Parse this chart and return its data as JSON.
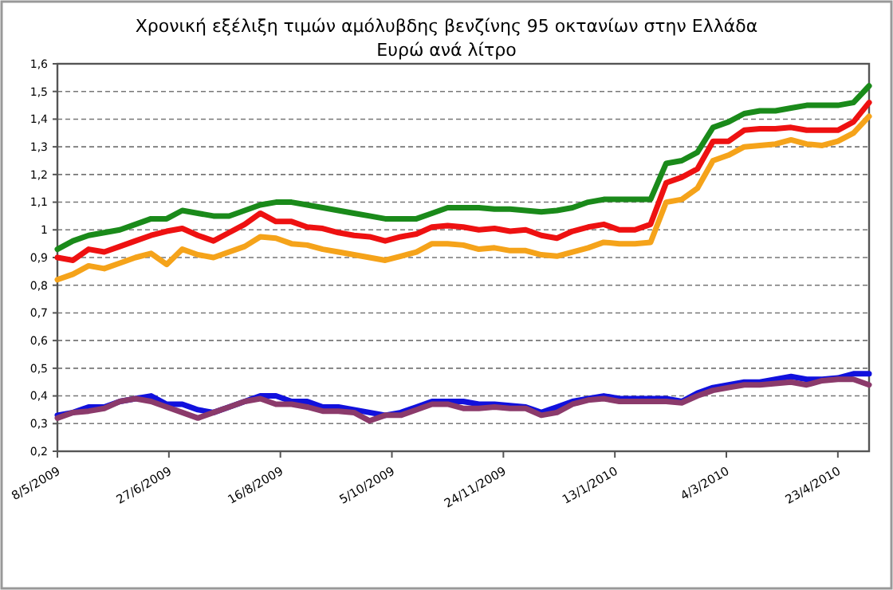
{
  "chart_data": {
    "type": "line",
    "title": "Χρονική εξέλιξη τιμών αμόλυβδης βενζίνης 95 οκτανίων στην Ελλάδα",
    "subtitle": "Ευρώ ανά λίτρο",
    "x": [
      "2009-05-08",
      "2009-05-15",
      "2009-05-22",
      "2009-05-29",
      "2009-06-05",
      "2009-06-12",
      "2009-06-19",
      "2009-06-26",
      "2009-07-03",
      "2009-07-10",
      "2009-07-17",
      "2009-07-24",
      "2009-07-31",
      "2009-08-07",
      "2009-08-14",
      "2009-08-21",
      "2009-08-28",
      "2009-09-04",
      "2009-09-11",
      "2009-09-18",
      "2009-09-25",
      "2009-10-02",
      "2009-10-09",
      "2009-10-16",
      "2009-10-23",
      "2009-10-30",
      "2009-11-06",
      "2009-11-13",
      "2009-11-20",
      "2009-11-27",
      "2009-12-04",
      "2009-12-11",
      "2009-12-18",
      "2009-12-25",
      "2010-01-01",
      "2010-01-08",
      "2010-01-15",
      "2010-01-22",
      "2010-01-29",
      "2010-02-05",
      "2010-02-12",
      "2010-02-19",
      "2010-02-26",
      "2010-03-05",
      "2010-03-12",
      "2010-03-19",
      "2010-03-26",
      "2010-04-02",
      "2010-04-09",
      "2010-04-16",
      "2010-04-23",
      "2010-04-30",
      "2010-05-07"
    ],
    "series": [
      {
        "color": "#1a8a1a",
        "values": [
          0.93,
          0.96,
          0.98,
          0.99,
          1.0,
          1.02,
          1.04,
          1.04,
          1.07,
          1.06,
          1.05,
          1.05,
          1.07,
          1.09,
          1.1,
          1.1,
          1.09,
          1.08,
          1.07,
          1.06,
          1.05,
          1.04,
          1.04,
          1.04,
          1.06,
          1.08,
          1.08,
          1.08,
          1.075,
          1.075,
          1.07,
          1.065,
          1.07,
          1.08,
          1.1,
          1.11,
          1.11,
          1.11,
          1.11,
          1.24,
          1.25,
          1.28,
          1.37,
          1.39,
          1.42,
          1.43,
          1.43,
          1.44,
          1.45,
          1.45,
          1.45,
          1.46,
          1.52
        ]
      },
      {
        "color": "#ee1111",
        "values": [
          0.9,
          0.89,
          0.93,
          0.92,
          0.94,
          0.96,
          0.98,
          0.995,
          1.005,
          0.98,
          0.96,
          0.99,
          1.02,
          1.06,
          1.03,
          1.03,
          1.01,
          1.005,
          0.99,
          0.98,
          0.975,
          0.96,
          0.975,
          0.985,
          1.01,
          1.015,
          1.01,
          1.0,
          1.005,
          0.995,
          1.0,
          0.98,
          0.97,
          0.995,
          1.01,
          1.02,
          1.0,
          1.0,
          1.02,
          1.17,
          1.19,
          1.22,
          1.32,
          1.32,
          1.36,
          1.365,
          1.365,
          1.37,
          1.36,
          1.36,
          1.36,
          1.39,
          1.46
        ]
      },
      {
        "color": "#f5a31a",
        "values": [
          0.82,
          0.84,
          0.87,
          0.86,
          0.88,
          0.9,
          0.915,
          0.875,
          0.93,
          0.91,
          0.9,
          0.92,
          0.94,
          0.975,
          0.97,
          0.95,
          0.945,
          0.93,
          0.92,
          0.91,
          0.9,
          0.89,
          0.905,
          0.92,
          0.95,
          0.95,
          0.945,
          0.93,
          0.935,
          0.925,
          0.925,
          0.91,
          0.905,
          0.92,
          0.935,
          0.955,
          0.95,
          0.95,
          0.955,
          1.1,
          1.11,
          1.15,
          1.25,
          1.27,
          1.3,
          1.305,
          1.31,
          1.325,
          1.31,
          1.305,
          1.32,
          1.35,
          1.41
        ]
      },
      {
        "color": "#1111dd",
        "values": [
          0.33,
          0.34,
          0.36,
          0.36,
          0.38,
          0.39,
          0.4,
          0.37,
          0.37,
          0.35,
          0.34,
          0.36,
          0.38,
          0.4,
          0.4,
          0.38,
          0.38,
          0.36,
          0.36,
          0.35,
          0.34,
          0.33,
          0.34,
          0.36,
          0.38,
          0.38,
          0.38,
          0.37,
          0.37,
          0.365,
          0.36,
          0.34,
          0.36,
          0.38,
          0.39,
          0.4,
          0.39,
          0.39,
          0.39,
          0.39,
          0.38,
          0.41,
          0.43,
          0.44,
          0.45,
          0.45,
          0.46,
          0.47,
          0.46,
          0.46,
          0.465,
          0.48,
          0.48
        ]
      },
      {
        "color": "#8b3a6b",
        "values": [
          0.32,
          0.34,
          0.345,
          0.355,
          0.38,
          0.39,
          0.38,
          0.36,
          0.34,
          0.32,
          0.34,
          0.36,
          0.38,
          0.39,
          0.37,
          0.37,
          0.36,
          0.345,
          0.345,
          0.34,
          0.31,
          0.33,
          0.33,
          0.35,
          0.37,
          0.37,
          0.355,
          0.355,
          0.36,
          0.355,
          0.355,
          0.33,
          0.34,
          0.37,
          0.385,
          0.39,
          0.38,
          0.38,
          0.38,
          0.38,
          0.375,
          0.4,
          0.42,
          0.43,
          0.44,
          0.44,
          0.445,
          0.45,
          0.44,
          0.455,
          0.46,
          0.46,
          0.44
        ]
      }
    ],
    "xlim": [
      "2009-05-08",
      "2010-05-07"
    ],
    "xticks": [
      {
        "value": "2009-05-08",
        "label": "8/5/2009"
      },
      {
        "value": "2009-06-27",
        "label": "27/6/2009"
      },
      {
        "value": "2009-08-16",
        "label": "16/8/2009"
      },
      {
        "value": "2009-10-05",
        "label": "5/10/2009"
      },
      {
        "value": "2009-11-24",
        "label": "24/11/2009"
      },
      {
        "value": "2010-01-13",
        "label": "13/1/2010"
      },
      {
        "value": "2010-03-04",
        "label": "4/3/2010"
      },
      {
        "value": "2010-04-23",
        "label": "23/4/2010"
      }
    ],
    "ylim": [
      0.2,
      1.6
    ],
    "yticks": [
      {
        "value": 0.2,
        "label": "0,2"
      },
      {
        "value": 0.3,
        "label": "0,3"
      },
      {
        "value": 0.4,
        "label": "0,4"
      },
      {
        "value": 0.5,
        "label": "0,5"
      },
      {
        "value": 0.6,
        "label": "0,6"
      },
      {
        "value": 0.7,
        "label": "0,7"
      },
      {
        "value": 0.8,
        "label": "0,8"
      },
      {
        "value": 0.9,
        "label": "0,9"
      },
      1,
      {
        "value": 1.1,
        "label": "1,1"
      },
      {
        "value": 1.2,
        "label": "1,2"
      },
      {
        "value": 1.3,
        "label": "1,3"
      },
      {
        "value": 1.4,
        "label": "1,4"
      },
      {
        "value": 1.5,
        "label": "1,5"
      },
      {
        "value": 1.6,
        "label": "1,6"
      }
    ],
    "grid": "y",
    "marker": "none",
    "line_style": "solid"
  }
}
